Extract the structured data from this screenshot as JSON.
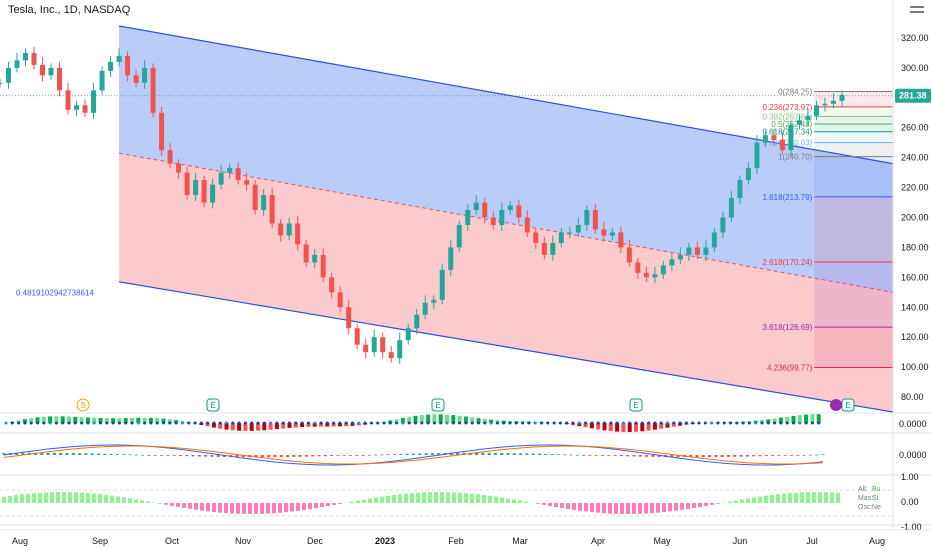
{
  "header": {
    "symbol_title": "Tesla, Inc., 1D, NASDAQ"
  },
  "colors": {
    "bull": "#26a69a",
    "bear": "#ef5350",
    "channel_upper_fill": "#b3c7f7",
    "channel_lower_fill": "#f9c4c8",
    "channel_line": "#2c4fd6",
    "price_tag": "#26a69a"
  },
  "price_axis": {
    "ticks": [
      "320.00",
      "300.00",
      "280.00",
      "260.00",
      "240.00",
      "220.00",
      "200.00",
      "180.00",
      "160.00",
      "140.00",
      "120.00",
      "100.00",
      "80.00"
    ],
    "last_price": "281.38"
  },
  "time_axis": {
    "labels": [
      "Aug",
      "Sep",
      "Oct",
      "Nov",
      "Dec",
      "2023",
      "Feb",
      "Mar",
      "Apr",
      "May",
      "Jun",
      "Jul",
      "Aug"
    ]
  },
  "channel_label": "0.4819102942738614",
  "fib_levels": [
    {
      "label": "0(284.25)",
      "price": 284.25,
      "color": "#787b86"
    },
    {
      "label": "0.236(273.97)",
      "price": 273.97,
      "color": "#f23645"
    },
    {
      "label": "0.382(267.61)",
      "price": 267.61,
      "color": "#81c784"
    },
    {
      "label": "0.5(262.48)",
      "price": 262.48,
      "color": "#4caf50"
    },
    {
      "label": "0.618(257.34)",
      "price": 257.34,
      "color": "#089981"
    },
    {
      "label": "0.786(250.03)",
      "price": 250.03,
      "color": "#64b5f6"
    },
    {
      "label": "1(240.70)",
      "price": 240.7,
      "color": "#787b86"
    },
    {
      "label": "1.618(213.79)",
      "price": 213.79,
      "color": "#2962ff"
    },
    {
      "label": "2.618(170.24)",
      "price": 170.24,
      "color": "#f23645"
    },
    {
      "label": "3.618(126.69)",
      "price": 126.69,
      "color": "#9c27b0"
    },
    {
      "label": "4.236(99.77)",
      "price": 99.77,
      "color": "#e91e63"
    }
  ],
  "event_markers": [
    {
      "label": "S",
      "kind": "split"
    },
    {
      "label": "E",
      "kind": "earnings"
    },
    {
      "label": "E",
      "kind": "earnings"
    },
    {
      "label": "E",
      "kind": "earnings"
    },
    {
      "label": "E",
      "kind": "earnings"
    }
  ],
  "pane2_axis": {
    "ticks": [
      "0.0000"
    ]
  },
  "pane3_axis": {
    "ticks": [
      "0.0000"
    ]
  },
  "pane4_axis": {
    "ticks": [
      "1.00",
      "0.00",
      "-1.00"
    ]
  },
  "pane4_legend": [
    "All:",
    "Mas:",
    "Osc:"
  ],
  "pane4_legend_values": [
    "Bu",
    "St",
    "Ne"
  ],
  "chart_data": {
    "type": "candlestick",
    "title": "Tesla, Inc., 1D, NASDAQ",
    "ylim": [
      70,
      332
    ],
    "x_range": [
      "2022-08",
      "2023-08"
    ],
    "series": [
      {
        "name": "",
        "points": [
          [
            0,
            290
          ],
          [
            4,
            300
          ],
          [
            8,
            305
          ],
          [
            12,
            310
          ],
          [
            16,
            302
          ],
          [
            20,
            295
          ],
          [
            24,
            300
          ],
          [
            28,
            285
          ],
          [
            32,
            272
          ],
          [
            36,
            275
          ],
          [
            40,
            270
          ],
          [
            44,
            285
          ],
          [
            48,
            298
          ],
          [
            52,
            304
          ],
          [
            56,
            308
          ],
          [
            60,
            295
          ],
          [
            64,
            290
          ],
          [
            68,
            300
          ],
          [
            72,
            270
          ],
          [
            76,
            245
          ],
          [
            80,
            236
          ],
          [
            84,
            230
          ],
          [
            88,
            215
          ],
          [
            92,
            225
          ],
          [
            96,
            210
          ],
          [
            100,
            222
          ],
          [
            104,
            230
          ],
          [
            108,
            233
          ],
          [
            112,
            225
          ],
          [
            116,
            222
          ],
          [
            120,
            205
          ],
          [
            124,
            215
          ],
          [
            128,
            196
          ],
          [
            132,
            188
          ],
          [
            136,
            196
          ],
          [
            140,
            182
          ],
          [
            144,
            170
          ],
          [
            148,
            175
          ],
          [
            152,
            160
          ],
          [
            156,
            150
          ],
          [
            160,
            140
          ],
          [
            164,
            126
          ],
          [
            168,
            115
          ],
          [
            172,
            110
          ],
          [
            176,
            120
          ],
          [
            180,
            110
          ],
          [
            184,
            106
          ],
          [
            188,
            118
          ],
          [
            192,
            126
          ],
          [
            196,
            135
          ],
          [
            200,
            143
          ],
          [
            204,
            145
          ],
          [
            208,
            165
          ],
          [
            212,
            180
          ],
          [
            216,
            195
          ],
          [
            220,
            205
          ],
          [
            224,
            210
          ],
          [
            228,
            200
          ],
          [
            232,
            195
          ],
          [
            236,
            205
          ],
          [
            240,
            208
          ],
          [
            244,
            200
          ],
          [
            248,
            190
          ],
          [
            252,
            183
          ],
          [
            256,
            175
          ],
          [
            260,
            183
          ],
          [
            264,
            190
          ],
          [
            268,
            190
          ],
          [
            272,
            195
          ],
          [
            276,
            205
          ],
          [
            280,
            192
          ],
          [
            284,
            188
          ],
          [
            288,
            190
          ],
          [
            292,
            180
          ],
          [
            296,
            170
          ],
          [
            300,
            163
          ],
          [
            304,
            160
          ],
          [
            308,
            162
          ],
          [
            312,
            168
          ],
          [
            316,
            172
          ],
          [
            320,
            175
          ],
          [
            324,
            180
          ],
          [
            328,
            175
          ],
          [
            332,
            180
          ],
          [
            336,
            190
          ],
          [
            340,
            200
          ],
          [
            344,
            213
          ],
          [
            348,
            225
          ],
          [
            352,
            233
          ],
          [
            356,
            250
          ],
          [
            360,
            255
          ],
          [
            364,
            252
          ],
          [
            368,
            245
          ],
          [
            372,
            262
          ],
          [
            376,
            265
          ],
          [
            380,
            268
          ],
          [
            384,
            275
          ],
          [
            388,
            276
          ],
          [
            392,
            278
          ],
          [
            396,
            282
          ]
        ],
        "point_format": [
          "day_index",
          "close"
        ]
      }
    ],
    "channel": {
      "upper_start": [
        56,
        328
      ],
      "upper_end": [
        420,
        236
      ],
      "mid_start": [
        56,
        243
      ],
      "mid_end": [
        420,
        150
      ],
      "lower_start": [
        56,
        157
      ],
      "lower_end": [
        420,
        70
      ]
    }
  }
}
